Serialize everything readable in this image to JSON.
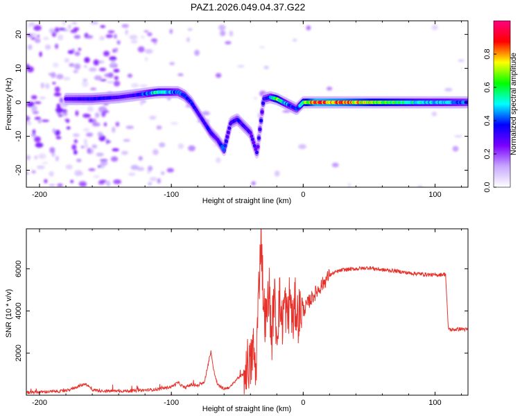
{
  "chart_data": [
    {
      "type": "heatmap",
      "title": "PAZ1.2026.049.04.37.G22",
      "xlabel": "Height of straight line (km)",
      "ylabel": "Frequency (Hz)",
      "xlim": [
        -210,
        125
      ],
      "ylim": [
        -25,
        24
      ],
      "x_ticks": [
        -200,
        -100,
        0,
        100
      ],
      "x_tick_labels": [
        "-200",
        "-100",
        "0",
        "100"
      ],
      "y_ticks": [
        -20,
        -10,
        0,
        10,
        20
      ],
      "y_tick_labels": [
        "-20",
        "-10",
        "0",
        "10",
        "20"
      ],
      "colorbar": {
        "label": "Normalized spectral amplitude",
        "range": [
          0,
          1
        ],
        "ticks": [
          0.0,
          0.2,
          0.4,
          0.6,
          0.8
        ],
        "tick_labels": [
          "0.0",
          "0.2",
          "0.4",
          "0.6",
          "0.8"
        ],
        "colormap": [
          "#ffffff",
          "#c8a8ff",
          "#7a00ff",
          "#0000ff",
          "#00ffff",
          "#00ff00",
          "#ffff00",
          "#ff0000",
          "#ff0080"
        ]
      },
      "ridge_track": {
        "x": [
          -180,
          -160,
          -140,
          -130,
          -120,
          -110,
          -100,
          -95,
          -90,
          -85,
          -80,
          -75,
          -70,
          -65,
          -60,
          -55,
          -50,
          -45,
          -40,
          -35,
          -30,
          -25,
          -20,
          -15,
          -10,
          -5,
          0,
          10,
          30,
          60,
          90,
          110,
          125
        ],
        "y": [
          1,
          1,
          1.5,
          2,
          2.5,
          3,
          3,
          3,
          2,
          0,
          -3,
          -6,
          -9,
          -11,
          -14,
          -6,
          -5,
          -7,
          -9,
          -15,
          1,
          1.5,
          1,
          0,
          -1,
          -2,
          0,
          0,
          0,
          0,
          0,
          0,
          0
        ],
        "amplitude": [
          0.3,
          0.35,
          0.3,
          0.3,
          0.4,
          0.55,
          0.45,
          0.4,
          0.4,
          0.35,
          0.3,
          0.3,
          0.35,
          0.3,
          0.4,
          0.3,
          0.35,
          0.3,
          0.3,
          0.3,
          0.35,
          0.4,
          0.7,
          0.5,
          0.4,
          0.35,
          0.6,
          0.85,
          0.8,
          0.65,
          0.5,
          0.45,
          0.4
        ]
      }
    },
    {
      "type": "line",
      "xlabel": "Height of straight line (km)",
      "ylabel": "SNR (10 * v/v)",
      "xlim": [
        -210,
        125
      ],
      "ylim": [
        0,
        7900
      ],
      "x_ticks": [
        -200,
        -100,
        0,
        100
      ],
      "x_tick_labels": [
        "-200",
        "-100",
        "0",
        "100"
      ],
      "y_ticks": [
        2000,
        4000,
        6000
      ],
      "y_tick_labels": [
        "2000",
        "4000",
        "6000"
      ],
      "color": "#e8302a",
      "series": [
        {
          "name": "SNR",
          "x": [
            -210,
            -200,
            -180,
            -165,
            -160,
            -150,
            -130,
            -110,
            -100,
            -95,
            -90,
            -85,
            -80,
            -75,
            -72,
            -70,
            -68,
            -65,
            -60,
            -55,
            -50,
            -45,
            -42,
            -40,
            -38,
            -36,
            -34,
            -32,
            -30,
            -28,
            -26,
            -24,
            -22,
            -20,
            -18,
            -16,
            -14,
            -12,
            -10,
            -8,
            -6,
            -4,
            -2,
            0,
            5,
            10,
            15,
            20,
            25,
            30,
            40,
            50,
            60,
            70,
            80,
            90,
            100,
            108,
            110,
            112,
            120,
            125
          ],
          "y": [
            120,
            150,
            200,
            550,
            250,
            200,
            200,
            280,
            400,
            600,
            350,
            500,
            450,
            600,
            1500,
            2100,
            1200,
            500,
            300,
            400,
            800,
            1000,
            1600,
            1300,
            2300,
            1000,
            4500,
            7900,
            4200,
            3400,
            5200,
            2600,
            4800,
            2900,
            4600,
            3400,
            4500,
            3500,
            4800,
            3400,
            4300,
            3700,
            4100,
            4000,
            4500,
            4900,
            5300,
            5700,
            5850,
            5950,
            6000,
            6050,
            5950,
            5900,
            5800,
            5750,
            5700,
            5750,
            3200,
            3100,
            3150,
            3100
          ]
        }
      ]
    }
  ]
}
